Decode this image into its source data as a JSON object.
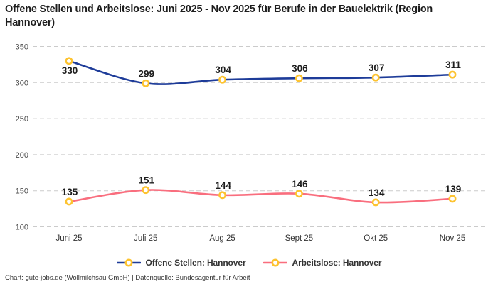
{
  "title": "Offene Stellen und Arbeitslose: Juni 2025 - Nov 2025 für Berufe in der Bauelektrik (Region Hannover)",
  "footer": "Chart: gute-jobs.de (Wollmilchsau GmbH) | Datenquelle: Bundesagentur für Arbeit",
  "colors": {
    "title_text": "#1d1d1d",
    "grid": "#cbcbcb",
    "tick_text": "#4d4d4d",
    "category_text": "#333333",
    "data_label_text": "#1d1d1d",
    "marker_stroke": "#fdc330",
    "marker_fill": "#ffffff",
    "series_blue": "#1e3c99",
    "series_pink": "#f96e7e",
    "legend_text": "#333333"
  },
  "chart_data": {
    "type": "line",
    "title": "Offene Stellen und Arbeitslose: Juni 2025 - Nov 2025 für Berufe in der Bauelektrik (Region Hannover)",
    "categories": [
      "Juni 25",
      "Juli 25",
      "Aug 25",
      "Sept 25",
      "Okt 25",
      "Nov 25"
    ],
    "series": [
      {
        "name": "Offene Stellen: Hannover",
        "color": "#1e3c99",
        "values": [
          330,
          299,
          304,
          306,
          307,
          311
        ],
        "label_placement": [
          "below",
          "above",
          "above",
          "above",
          "above",
          "above"
        ]
      },
      {
        "name": "Arbeitslose: Hannover",
        "color": "#f96e7e",
        "values": [
          135,
          151,
          144,
          146,
          134,
          139
        ],
        "label_placement": [
          "above",
          "above",
          "above",
          "above",
          "above",
          "above"
        ]
      }
    ],
    "ylim": [
      100,
      350
    ],
    "yticks": [
      350,
      300,
      250,
      200,
      150,
      100
    ],
    "xlabel": "",
    "ylabel": "",
    "grid": "horizontal-dashed",
    "legend_position": "bottom",
    "marker": {
      "shape": "circle",
      "fill": "#ffffff",
      "stroke": "#fdc330"
    }
  }
}
